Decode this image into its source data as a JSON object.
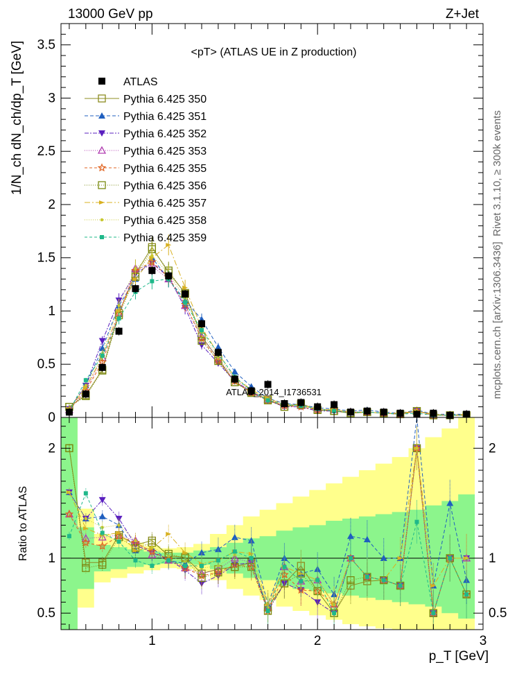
{
  "header": {
    "energy_label": "13000 GeV pp",
    "process_label": "Z+Jet"
  },
  "side_labels": {
    "rivet": "Rivet 3.1.10, ≥ 300k events",
    "site": "mcplots.cern.ch [arXiv:1306.3436]"
  },
  "watermark": "ATLAS_2014_I1736531",
  "chart_data": [
    {
      "type": "line",
      "panel": "main",
      "title": "<pT> (ATLAS UE in Z production)",
      "xlabel": "p_T [GeV]",
      "ylabel": "1/N_ch dN_ch/dp_T [GeV]",
      "xlim": [
        0.45,
        3.0
      ],
      "ylim": [
        0,
        3.7
      ],
      "xticks": [
        "1",
        "2",
        "3"
      ],
      "yticks": [
        "0",
        "0.5",
        "1",
        "1.5",
        "2",
        "2.5",
        "3",
        "3.5"
      ],
      "x": [
        0.5,
        0.6,
        0.7,
        0.8,
        0.9,
        1.0,
        1.1,
        1.2,
        1.3,
        1.4,
        1.5,
        1.6,
        1.7,
        1.8,
        1.9,
        2.0,
        2.1,
        2.2,
        2.3,
        2.4,
        2.5,
        2.6,
        2.7,
        2.8,
        2.9
      ],
      "series": [
        {
          "name": "ATLAS",
          "color": "#000000",
          "marker": "filled-square",
          "values": [
            0.05,
            0.22,
            0.47,
            0.81,
            1.21,
            1.38,
            1.33,
            1.16,
            0.88,
            0.61,
            0.36,
            0.25,
            0.31,
            0.13,
            0.14,
            0.1,
            0.12,
            0.05,
            0.06,
            0.05,
            0.04,
            0.03,
            0.04,
            0.02,
            0.03
          ]
        },
        {
          "name": "Pythia 6.425 350",
          "color": "#8c8c20",
          "marker": "open-square",
          "dash": "",
          "values": [
            0.1,
            0.21,
            0.45,
            0.98,
            1.35,
            1.6,
            1.36,
            1.17,
            0.76,
            0.55,
            0.33,
            0.24,
            0.17,
            0.1,
            0.13,
            0.07,
            0.06,
            0.04,
            0.05,
            0.04,
            0.03,
            0.06,
            0.02,
            0.02,
            0.02
          ]
        },
        {
          "name": "Pythia 6.425 351",
          "color": "#1f5fbf",
          "marker": "filled-triangle-up",
          "dash": "5,3",
          "values": [
            0.08,
            0.3,
            0.65,
            1.05,
            1.3,
            1.5,
            1.3,
            1.1,
            0.92,
            0.66,
            0.43,
            0.29,
            0.18,
            0.13,
            0.12,
            0.09,
            0.08,
            0.06,
            0.07,
            0.05,
            0.04,
            0.07,
            0.03,
            0.03,
            0.03
          ]
        },
        {
          "name": "Pythia 6.425 352",
          "color": "#5a1fbf",
          "marker": "filled-triangle-down",
          "dash": "6,2,2,2",
          "values": [
            0.08,
            0.3,
            0.72,
            1.1,
            1.35,
            1.45,
            1.32,
            1.03,
            0.68,
            0.51,
            0.34,
            0.24,
            0.16,
            0.1,
            0.1,
            0.06,
            0.06,
            0.05,
            0.05,
            0.04,
            0.03,
            0.06,
            0.02,
            0.02,
            0.03
          ]
        },
        {
          "name": "Pythia 6.425 353",
          "color": "#b03cb0",
          "marker": "open-triangle-up",
          "dash": "1,2",
          "values": [
            0.07,
            0.26,
            0.56,
            0.98,
            1.4,
            1.42,
            1.3,
            1.05,
            0.76,
            0.55,
            0.36,
            0.24,
            0.17,
            0.12,
            0.11,
            0.08,
            0.07,
            0.05,
            0.05,
            0.04,
            0.03,
            0.06,
            0.02,
            0.02,
            0.03
          ]
        },
        {
          "name": "Pythia 6.425 355",
          "color": "#e0621f",
          "marker": "open-star",
          "dash": "4,3",
          "values": [
            0.07,
            0.25,
            0.52,
            0.97,
            1.38,
            1.46,
            1.32,
            1.06,
            0.74,
            0.53,
            0.34,
            0.23,
            0.16,
            0.11,
            0.1,
            0.07,
            0.07,
            0.05,
            0.05,
            0.04,
            0.03,
            0.06,
            0.02,
            0.02,
            0.02
          ]
        },
        {
          "name": "Pythia 6.425 356",
          "color": "#7a8a10",
          "marker": "open-square",
          "dash": "1,2",
          "values": [
            0.1,
            0.2,
            0.44,
            0.96,
            1.32,
            1.58,
            1.38,
            1.16,
            0.72,
            0.53,
            0.33,
            0.23,
            0.16,
            0.1,
            0.12,
            0.07,
            0.06,
            0.04,
            0.05,
            0.04,
            0.03,
            0.06,
            0.02,
            0.02,
            0.02
          ]
        },
        {
          "name": "Pythia 6.425 357",
          "color": "#d8b020",
          "marker": "filled-triangle-right",
          "dash": "8,3,2,3",
          "values": [
            0.08,
            0.28,
            0.57,
            1.0,
            1.3,
            1.5,
            1.62,
            1.22,
            0.84,
            0.6,
            0.38,
            0.26,
            0.18,
            0.12,
            0.12,
            0.08,
            0.07,
            0.05,
            0.05,
            0.04,
            0.04,
            0.06,
            0.03,
            0.02,
            0.03
          ]
        },
        {
          "name": "Pythia 6.425 358",
          "color": "#c8c830",
          "marker": "filled-dot",
          "dash": "1,2",
          "values": [
            0.08,
            0.3,
            0.6,
            1.05,
            1.4,
            1.52,
            1.35,
            1.12,
            0.8,
            0.57,
            0.37,
            0.25,
            0.17,
            0.12,
            0.11,
            0.08,
            0.07,
            0.05,
            0.05,
            0.04,
            0.03,
            0.06,
            0.02,
            0.02,
            0.03
          ]
        },
        {
          "name": "Pythia 6.425 359",
          "color": "#1fb88a",
          "marker": "filled-square-small",
          "dash": "4,3",
          "values": [
            0.06,
            0.35,
            0.58,
            0.93,
            1.18,
            1.28,
            1.3,
            1.08,
            0.82,
            0.6,
            0.38,
            0.25,
            0.16,
            0.12,
            0.11,
            0.08,
            0.06,
            0.05,
            0.05,
            0.04,
            0.03,
            0.04,
            0.02,
            0.02,
            0.02
          ]
        }
      ]
    },
    {
      "type": "line",
      "panel": "ratio",
      "ylabel": "Ratio to ATLAS",
      "xlim": [
        0.45,
        3.0
      ],
      "ylim": [
        0.35,
        2.28
      ],
      "xticks": [
        "1",
        "2",
        "3"
      ],
      "yticks": [
        "0.5",
        "1",
        "2"
      ],
      "x": [
        0.5,
        0.6,
        0.7,
        0.8,
        0.9,
        1.0,
        1.1,
        1.2,
        1.3,
        1.4,
        1.5,
        1.6,
        1.7,
        1.8,
        1.9,
        2.0,
        2.1,
        2.2,
        2.3,
        2.4,
        2.5,
        2.6,
        2.7,
        2.8,
        2.9
      ],
      "band_green": {
        "lo": [
          0.35,
          0.72,
          0.88,
          0.9,
          0.92,
          0.94,
          0.95,
          0.95,
          0.94,
          0.9,
          0.86,
          0.82,
          0.8,
          0.75,
          0.72,
          0.7,
          0.68,
          0.66,
          0.64,
          0.62,
          0.6,
          0.58,
          0.56,
          0.5,
          0.45
        ],
        "hi": [
          2.28,
          1.28,
          1.12,
          1.1,
          1.08,
          1.06,
          1.05,
          1.05,
          1.07,
          1.1,
          1.14,
          1.18,
          1.2,
          1.25,
          1.28,
          1.3,
          1.34,
          1.36,
          1.38,
          1.4,
          1.42,
          1.44,
          1.48,
          1.52,
          1.58
        ]
      },
      "band_yellow": {
        "lo": [
          0.35,
          0.55,
          0.78,
          0.82,
          0.86,
          0.89,
          0.91,
          0.9,
          0.88,
          0.8,
          0.72,
          0.66,
          0.62,
          0.56,
          0.52,
          0.48,
          0.44,
          0.4,
          0.38,
          0.36,
          0.35,
          0.35,
          0.35,
          0.35,
          0.35
        ],
        "hi": [
          2.28,
          1.45,
          1.22,
          1.18,
          1.14,
          1.11,
          1.09,
          1.1,
          1.13,
          1.22,
          1.3,
          1.38,
          1.44,
          1.5,
          1.56,
          1.62,
          1.68,
          1.74,
          1.8,
          1.86,
          1.92,
          2.0,
          2.1,
          2.18,
          2.28
        ]
      },
      "series": [
        {
          "name": "Pythia 6.425 350",
          "values": [
            2.0,
            0.96,
            0.96,
            1.21,
            1.12,
            1.16,
            1.02,
            1.01,
            0.86,
            0.9,
            0.92,
            0.96,
            0.55,
            0.77,
            0.93,
            0.7,
            0.5,
            0.75,
            0.79,
            0.8,
            0.75,
            2.0,
            0.5,
            1.0,
            0.67
          ]
        },
        {
          "name": "Pythia 6.425 351",
          "values": [
            1.6,
            1.36,
            1.38,
            1.3,
            1.07,
            1.09,
            0.98,
            0.95,
            1.05,
            1.08,
            1.19,
            1.16,
            0.58,
            1.0,
            0.86,
            0.9,
            0.67,
            1.2,
            1.17,
            1.0,
            1.0,
            2.33,
            0.75,
            1.5,
            0.8
          ]
        },
        {
          "name": "Pythia 6.425 352",
          "values": [
            1.6,
            1.36,
            1.53,
            1.36,
            1.12,
            1.05,
            0.99,
            0.89,
            0.77,
            0.84,
            0.94,
            0.96,
            0.52,
            0.77,
            0.71,
            0.6,
            0.5,
            1.0,
            0.83,
            0.8,
            0.75,
            2.0,
            0.5,
            1.0,
            1.0
          ]
        },
        {
          "name": "Pythia 6.425 353",
          "values": [
            1.4,
            1.18,
            1.19,
            1.21,
            1.16,
            1.03,
            0.98,
            0.91,
            0.86,
            0.9,
            1.0,
            0.96,
            0.55,
            0.92,
            0.79,
            0.8,
            0.58,
            1.0,
            0.83,
            0.8,
            0.75,
            2.0,
            0.5,
            1.0,
            1.0
          ]
        },
        {
          "name": "Pythia 6.425 355",
          "values": [
            1.4,
            1.14,
            1.11,
            1.2,
            1.14,
            1.06,
            0.99,
            0.91,
            0.84,
            0.87,
            0.94,
            0.92,
            0.52,
            0.85,
            0.71,
            0.7,
            0.58,
            1.0,
            0.83,
            0.8,
            0.75,
            2.0,
            0.5,
            1.0,
            0.67
          ]
        },
        {
          "name": "Pythia 6.425 356",
          "values": [
            2.0,
            0.91,
            0.94,
            1.19,
            1.09,
            1.14,
            1.04,
            1.0,
            0.82,
            0.87,
            0.92,
            0.92,
            0.52,
            0.77,
            0.86,
            0.7,
            0.5,
            0.8,
            0.83,
            0.8,
            0.75,
            2.0,
            0.5,
            1.0,
            0.67
          ]
        },
        {
          "name": "Pythia 6.425 357",
          "values": [
            1.6,
            1.27,
            1.21,
            1.23,
            1.07,
            1.09,
            1.22,
            1.05,
            0.95,
            0.98,
            1.06,
            1.04,
            0.58,
            0.92,
            0.86,
            0.8,
            0.58,
            1.0,
            0.83,
            0.8,
            1.0,
            2.0,
            0.75,
            1.0,
            1.0
          ]
        },
        {
          "name": "Pythia 6.425 358",
          "values": [
            1.6,
            1.36,
            1.28,
            1.3,
            1.16,
            1.1,
            1.02,
            0.97,
            0.91,
            0.93,
            1.03,
            1.0,
            0.55,
            0.92,
            0.79,
            0.8,
            0.58,
            1.0,
            0.83,
            0.8,
            0.75,
            2.0,
            0.5,
            1.0,
            1.0
          ]
        },
        {
          "name": "Pythia 6.425 359",
          "values": [
            1.2,
            1.59,
            1.23,
            1.15,
            0.98,
            0.93,
            0.98,
            0.93,
            0.93,
            0.98,
            1.06,
            1.0,
            0.52,
            0.92,
            0.79,
            0.8,
            0.5,
            1.0,
            0.83,
            0.8,
            0.75,
            1.33,
            0.5,
            1.0,
            0.67
          ]
        }
      ]
    }
  ]
}
